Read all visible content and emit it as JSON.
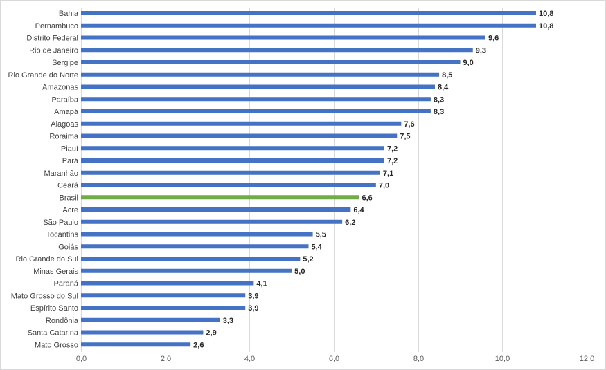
{
  "chart_data": {
    "type": "bar",
    "orientation": "horizontal",
    "categories": [
      "Bahia",
      "Pernambuco",
      "Distrito Federal",
      "Rio de Janeiro",
      "Sergipe",
      "Rio Grande do Norte",
      "Amazonas",
      "Paraíba",
      "Amapá",
      "Alagoas",
      "Roraima",
      "Piauí",
      "Pará",
      "Maranhão",
      "Ceará",
      "Brasil",
      "Acre",
      "São Paulo",
      "Tocantins",
      "Goiás",
      "Rio Grande do Sul",
      "Minas Gerais",
      "Paraná",
      "Mato Grosso do Sul",
      "Espírito Santo",
      "Rondônia",
      "Santa Catarina",
      "Mato Grosso"
    ],
    "values": [
      10.8,
      10.8,
      9.6,
      9.3,
      9.0,
      8.5,
      8.4,
      8.3,
      8.3,
      7.6,
      7.5,
      7.2,
      7.2,
      7.1,
      7.0,
      6.6,
      6.4,
      6.2,
      5.5,
      5.4,
      5.2,
      5.0,
      4.1,
      3.9,
      3.9,
      3.3,
      2.9,
      2.6
    ],
    "value_labels": [
      "10,8",
      "10,8",
      "9,6",
      "9,3",
      "9,0",
      "8,5",
      "8,4",
      "8,3",
      "8,3",
      "7,6",
      "7,5",
      "7,2",
      "7,2",
      "7,1",
      "7,0",
      "6,6",
      "6,4",
      "6,2",
      "5,5",
      "5,4",
      "5,2",
      "5,0",
      "4,1",
      "3,9",
      "3,9",
      "3,3",
      "2,9",
      "2,6"
    ],
    "xlim": [
      0,
      12
    ],
    "ticks": [
      0,
      2,
      4,
      6,
      8,
      10,
      12
    ],
    "tick_labels": [
      "0,0",
      "2,0",
      "4,0",
      "6,0",
      "8,0",
      "10,0",
      "12,0"
    ],
    "grid": true,
    "bar_color": "#4472c4",
    "highlight_color": "#70ad47",
    "highlight_category": "Brasil"
  }
}
